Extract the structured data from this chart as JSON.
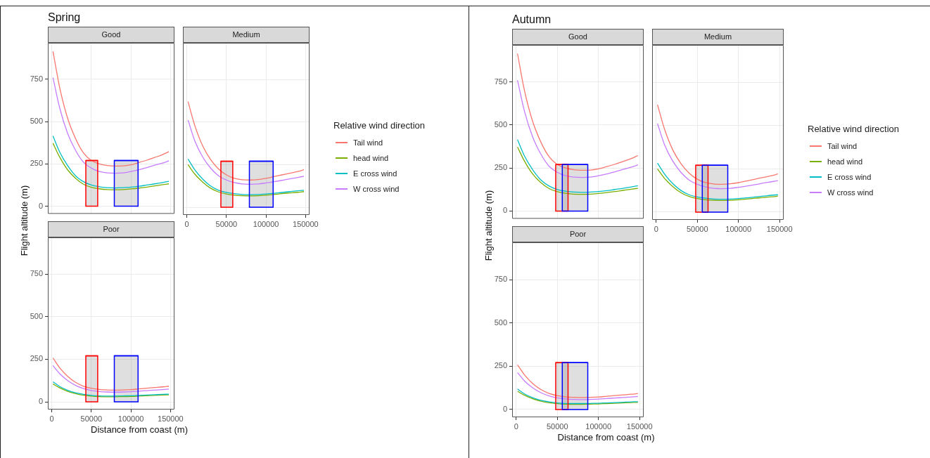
{
  "chart_data": [
    {
      "type": "line",
      "title": "Good",
      "annotations": [
        "Spring"
      ],
      "tick_labels": "y",
      "grid": true,
      "xlim": [
        -5000,
        155000
      ],
      "ylim": [
        -45,
        965
      ],
      "xticks": [
        0,
        50000,
        100000,
        150000
      ],
      "yticks": [
        0,
        250,
        500,
        750
      ],
      "x": [
        1500,
        10000,
        20000,
        30000,
        40000,
        50000,
        60000,
        70000,
        80000,
        90000,
        100000,
        110000,
        120000,
        130000,
        140000,
        148000
      ],
      "series": [
        {
          "type": "area",
          "color": "#ff0000",
          "x": [
            43000,
            58000
          ],
          "values": [
            270,
            270
          ]
        },
        {
          "type": "area",
          "color": "#0000ff",
          "x": [
            79000,
            109000
          ],
          "values": [
            270,
            270
          ]
        },
        {
          "color": "#f8766d",
          "values": [
            915,
            700,
            520,
            400,
            315,
            270,
            250,
            240,
            237,
            238,
            245,
            258,
            272,
            288,
            305,
            322
          ]
        },
        {
          "color": "#7cae00",
          "values": [
            372,
            290,
            215,
            165,
            130,
            112,
            103,
            98,
            97,
            98,
            102,
            107,
            113,
            120,
            127,
            132
          ]
        },
        {
          "color": "#00bfc4",
          "values": [
            415,
            320,
            240,
            180,
            145,
            125,
            115,
            110,
            108,
            110,
            113,
            118,
            125,
            132,
            140,
            147
          ]
        },
        {
          "color": "#c77cff",
          "values": [
            760,
            580,
            430,
            330,
            260,
            225,
            205,
            197,
            195,
            197,
            205,
            215,
            228,
            242,
            255,
            268
          ]
        }
      ]
    },
    {
      "type": "line",
      "title": "Medium",
      "tick_labels": "x",
      "grid": true,
      "legend": "right",
      "legend_title": "Relative wind direction",
      "xlim": [
        -5000,
        155000
      ],
      "ylim": [
        -45,
        965
      ],
      "xticks": [
        0,
        50000,
        100000,
        150000
      ],
      "yticks": [
        0,
        250,
        500,
        750
      ],
      "x": [
        1500,
        10000,
        20000,
        30000,
        40000,
        50000,
        60000,
        70000,
        80000,
        90000,
        100000,
        110000,
        120000,
        130000,
        140000,
        148000
      ],
      "series": [
        {
          "type": "area",
          "color": "#ff0000",
          "x": [
            43000,
            58000
          ],
          "values": [
            270,
            270
          ]
        },
        {
          "type": "area",
          "color": "#0000ff",
          "x": [
            79000,
            109000
          ],
          "values": [
            270,
            270
          ]
        },
        {
          "name": "Tail wind",
          "color": "#f8766d",
          "values": [
            620,
            480,
            360,
            280,
            225,
            190,
            170,
            162,
            160,
            163,
            170,
            180,
            190,
            200,
            210,
            220
          ]
        },
        {
          "name": "head wind",
          "color": "#7cae00",
          "values": [
            250,
            195,
            148,
            112,
            90,
            78,
            71,
            68,
            67,
            68,
            71,
            75,
            80,
            84,
            88,
            92
          ]
        },
        {
          "name": "E cross wind",
          "color": "#00bfc4",
          "values": [
            283,
            220,
            165,
            125,
            100,
            87,
            80,
            75,
            74,
            75,
            78,
            82,
            87,
            92,
            97,
            100
          ]
        },
        {
          "name": "W cross wind",
          "color": "#c77cff",
          "values": [
            512,
            390,
            295,
            230,
            185,
            160,
            145,
            137,
            135,
            137,
            143,
            150,
            158,
            167,
            175,
            182
          ]
        }
      ]
    },
    {
      "type": "line",
      "title": "Poor",
      "xlabel": "Distance from coast (m)",
      "ylabel": "Flight altitude (m)",
      "grid": true,
      "xlim": [
        -5000,
        155000
      ],
      "ylim": [
        -45,
        965
      ],
      "xticks": [
        0,
        50000,
        100000,
        150000
      ],
      "yticks": [
        0,
        250,
        500,
        750
      ],
      "x": [
        1500,
        10000,
        20000,
        30000,
        40000,
        50000,
        60000,
        70000,
        80000,
        90000,
        100000,
        110000,
        120000,
        130000,
        140000,
        148000
      ],
      "series": [
        {
          "type": "area",
          "color": "#ff0000",
          "x": [
            43000,
            58000
          ],
          "values": [
            270,
            270
          ]
        },
        {
          "type": "area",
          "color": "#0000ff",
          "x": [
            79000,
            109000
          ],
          "values": [
            270,
            270
          ]
        },
        {
          "color": "#f8766d",
          "values": [
            258,
            200,
            150,
            115,
            92,
            80,
            73,
            70,
            69,
            70,
            72,
            76,
            80,
            84,
            88,
            92
          ]
        },
        {
          "color": "#7cae00",
          "values": [
            105,
            82,
            62,
            48,
            39,
            34,
            31,
            30,
            30,
            31,
            32,
            34,
            36,
            38,
            40,
            41
          ]
        },
        {
          "color": "#00bfc4",
          "values": [
            118,
            90,
            68,
            53,
            44,
            38,
            35,
            34,
            34,
            35,
            36,
            38,
            40,
            42,
            44,
            45
          ]
        },
        {
          "color": "#c77cff",
          "values": [
            213,
            165,
            125,
            97,
            78,
            67,
            61,
            58,
            57,
            58,
            60,
            63,
            66,
            69,
            72,
            75
          ]
        }
      ]
    },
    {
      "type": "line",
      "title": "Good",
      "annotations": [
        "Autumn"
      ],
      "tick_labels": "y",
      "grid": true,
      "xlim": [
        -5000,
        155000
      ],
      "ylim": [
        -45,
        965
      ],
      "xticks": [
        0,
        50000,
        100000,
        150000
      ],
      "yticks": [
        0,
        250,
        500,
        750
      ],
      "x": [
        1500,
        10000,
        20000,
        30000,
        40000,
        50000,
        60000,
        70000,
        80000,
        90000,
        100000,
        110000,
        120000,
        130000,
        140000,
        148000
      ],
      "series": [
        {
          "type": "area",
          "color": "#ff0000",
          "x": [
            48000,
            63000
          ],
          "values": [
            270,
            270
          ]
        },
        {
          "type": "area",
          "color": "#0000ff",
          "x": [
            56000,
            87000
          ],
          "values": [
            270,
            270
          ]
        },
        {
          "color": "#f8766d",
          "values": [
            915,
            700,
            520,
            400,
            315,
            270,
            250,
            240,
            237,
            238,
            245,
            258,
            272,
            288,
            305,
            322
          ]
        },
        {
          "color": "#7cae00",
          "values": [
            372,
            290,
            215,
            165,
            130,
            112,
            103,
            98,
            97,
            98,
            102,
            107,
            113,
            120,
            127,
            132
          ]
        },
        {
          "color": "#00bfc4",
          "values": [
            415,
            320,
            240,
            180,
            145,
            125,
            115,
            110,
            108,
            110,
            113,
            118,
            125,
            132,
            140,
            147
          ]
        },
        {
          "color": "#c77cff",
          "values": [
            760,
            580,
            430,
            330,
            260,
            225,
            205,
            197,
            195,
            197,
            205,
            215,
            228,
            242,
            255,
            268
          ]
        }
      ]
    },
    {
      "type": "line",
      "title": "Medium",
      "tick_labels": "x",
      "grid": true,
      "legend": "right",
      "legend_title": "Relative wind direction",
      "xlim": [
        -5000,
        155000
      ],
      "ylim": [
        -45,
        965
      ],
      "xticks": [
        0,
        50000,
        100000,
        150000
      ],
      "yticks": [
        0,
        250,
        500,
        750
      ],
      "x": [
        1500,
        10000,
        20000,
        30000,
        40000,
        50000,
        60000,
        70000,
        80000,
        90000,
        100000,
        110000,
        120000,
        130000,
        140000,
        148000
      ],
      "series": [
        {
          "type": "area",
          "color": "#ff0000",
          "x": [
            48000,
            63000
          ],
          "values": [
            270,
            270
          ]
        },
        {
          "type": "area",
          "color": "#0000ff",
          "x": [
            56000,
            87000
          ],
          "values": [
            270,
            270
          ]
        },
        {
          "name": "Tail wind",
          "color": "#f8766d",
          "values": [
            620,
            480,
            360,
            280,
            225,
            190,
            170,
            162,
            160,
            163,
            170,
            180,
            190,
            200,
            210,
            220
          ]
        },
        {
          "name": "head wind",
          "color": "#7cae00",
          "values": [
            250,
            195,
            148,
            112,
            90,
            78,
            71,
            68,
            67,
            68,
            71,
            75,
            80,
            84,
            88,
            92
          ]
        },
        {
          "name": "E cross wind",
          "color": "#00bfc4",
          "values": [
            283,
            220,
            165,
            125,
            100,
            87,
            80,
            75,
            74,
            75,
            78,
            82,
            87,
            92,
            97,
            100
          ]
        },
        {
          "name": "W cross wind",
          "color": "#c77cff",
          "values": [
            512,
            390,
            295,
            230,
            185,
            160,
            145,
            137,
            135,
            137,
            143,
            150,
            158,
            167,
            175,
            182
          ]
        }
      ]
    },
    {
      "type": "line",
      "title": "Poor",
      "xlabel": "Distance from coast (m)",
      "ylabel": "Flight altitude (m)",
      "grid": true,
      "xlim": [
        -5000,
        155000
      ],
      "ylim": [
        -45,
        965
      ],
      "xticks": [
        0,
        50000,
        100000,
        150000
      ],
      "yticks": [
        0,
        250,
        500,
        750
      ],
      "x": [
        1500,
        10000,
        20000,
        30000,
        40000,
        50000,
        60000,
        70000,
        80000,
        90000,
        100000,
        110000,
        120000,
        130000,
        140000,
        148000
      ],
      "series": [
        {
          "type": "area",
          "color": "#ff0000",
          "x": [
            48000,
            63000
          ],
          "values": [
            270,
            270
          ]
        },
        {
          "type": "area",
          "color": "#0000ff",
          "x": [
            56000,
            87000
          ],
          "values": [
            270,
            270
          ]
        },
        {
          "color": "#f8766d",
          "values": [
            258,
            200,
            150,
            115,
            92,
            80,
            73,
            70,
            69,
            70,
            72,
            76,
            80,
            84,
            88,
            92
          ]
        },
        {
          "color": "#7cae00",
          "values": [
            105,
            82,
            62,
            48,
            39,
            34,
            31,
            30,
            30,
            31,
            32,
            34,
            36,
            38,
            40,
            41
          ]
        },
        {
          "color": "#00bfc4",
          "values": [
            118,
            90,
            68,
            53,
            44,
            38,
            35,
            34,
            34,
            35,
            36,
            38,
            40,
            42,
            44,
            45
          ]
        },
        {
          "color": "#c77cff",
          "values": [
            213,
            165,
            125,
            97,
            78,
            67,
            61,
            58,
            57,
            58,
            60,
            63,
            66,
            69,
            72,
            75
          ]
        }
      ]
    }
  ]
}
